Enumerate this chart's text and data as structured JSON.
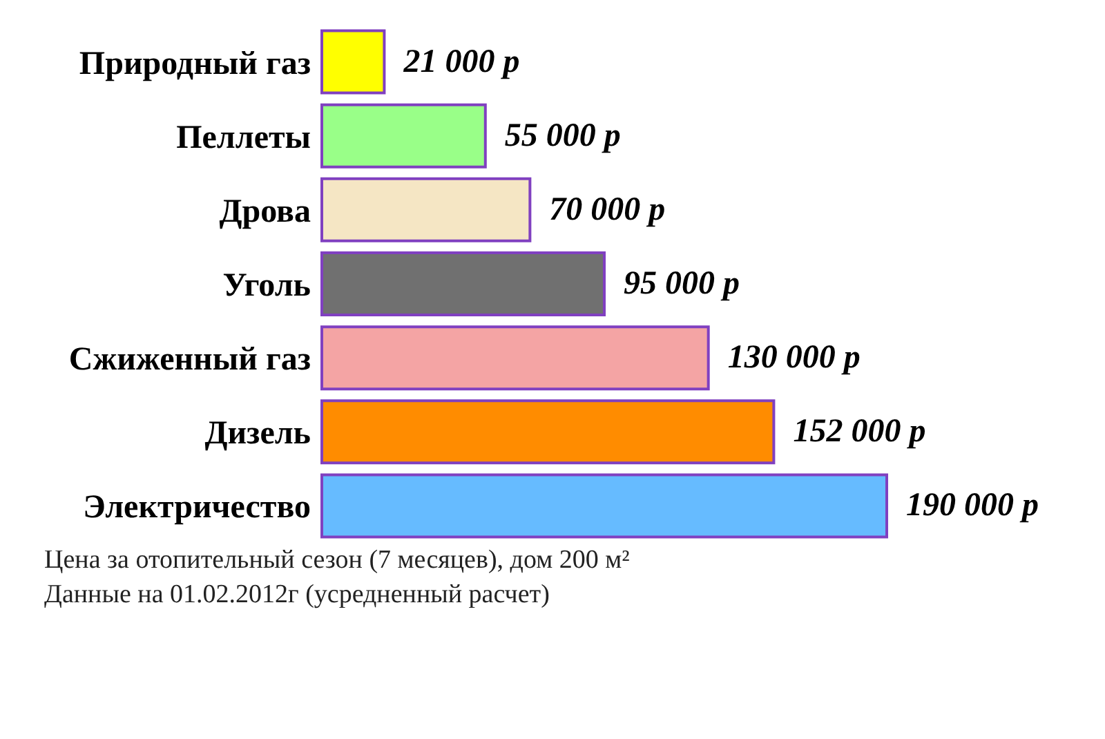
{
  "chart_data": {
    "type": "bar",
    "orientation": "horizontal",
    "categories": [
      "Природный газ",
      "Пеллеты",
      "Дрова",
      "Уголь",
      "Сжиженный газ",
      "Дизель",
      "Электричество"
    ],
    "values": [
      21000,
      55000,
      70000,
      95000,
      130000,
      152000,
      190000
    ],
    "colors": [
      "#ffff00",
      "#99ff88",
      "#f5e6c4",
      "#707070",
      "#f4a4a4",
      "#ff8c00",
      "#66bbff"
    ],
    "value_labels": [
      "21 000 р",
      "55 000 р",
      "70 000 р",
      "95 000 р",
      "130 000 р",
      "152 000 р",
      "190 000 р"
    ],
    "annotations": [
      "Цена за отопительный сезон (7 месяцев), дом 200 м²",
      "Данные на 01.02.2012г (усредненный расчет)"
    ]
  }
}
